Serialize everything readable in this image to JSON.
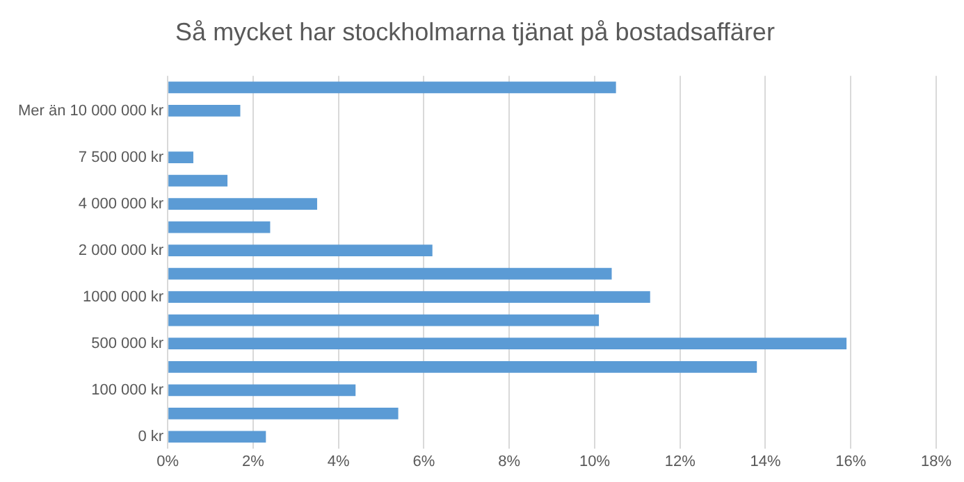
{
  "chart_data": {
    "type": "bar",
    "orientation": "horizontal",
    "title": "Så mycket har stockholmarna tjänat på bostadsaffärer",
    "categories": [
      null,
      "Mer än 10 000 000 kr",
      null,
      "7 500 000 kr",
      null,
      "4 000 000 kr",
      null,
      "2 000 000 kr",
      null,
      "1000 000 kr",
      null,
      "500 000 kr",
      null,
      "100 000 kr",
      null,
      "0 kr"
    ],
    "values": [
      10.5,
      1.7,
      0,
      0.6,
      1.4,
      3.5,
      2.4,
      6.2,
      10.4,
      11.3,
      10.1,
      15.9,
      13.8,
      4.4,
      5.4,
      2.3
    ],
    "color": "#5b9bd5",
    "xlim": [
      0,
      18
    ],
    "xticks": [
      {
        "value": 0,
        "label": "0%"
      },
      {
        "value": 2,
        "label": "2%"
      },
      {
        "value": 4,
        "label": "4%"
      },
      {
        "value": 6,
        "label": "6%"
      },
      {
        "value": 8,
        "label": "8%"
      },
      {
        "value": 10,
        "label": "10%"
      },
      {
        "value": 12,
        "label": "12%"
      },
      {
        "value": 14,
        "label": "14%"
      },
      {
        "value": 16,
        "label": "16%"
      },
      {
        "value": 18,
        "label": "18%"
      }
    ],
    "grid": "x",
    "legend": false
  }
}
